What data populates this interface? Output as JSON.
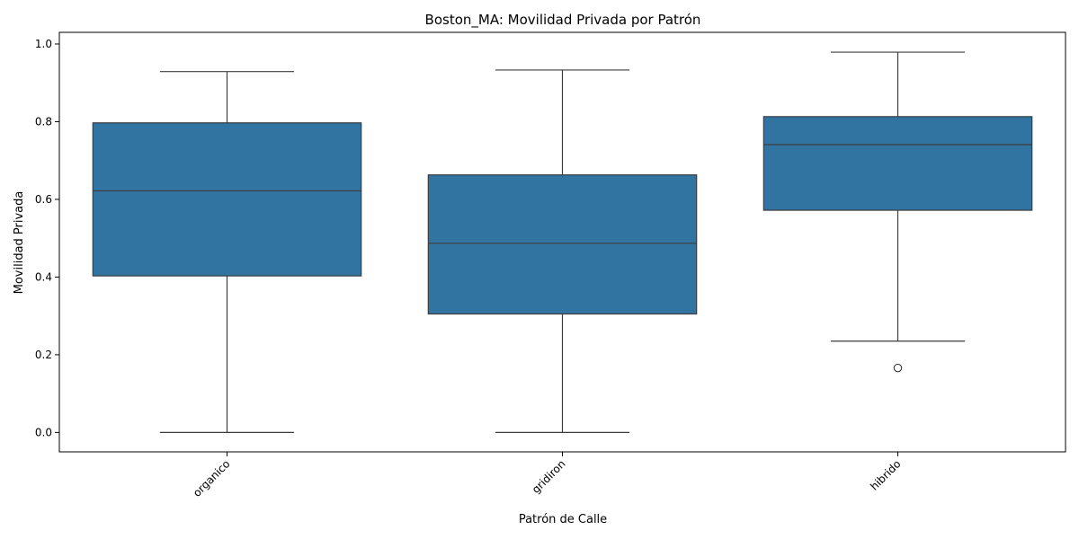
{
  "chart_data": {
    "type": "box",
    "title": "Boston_MA: Movilidad Privada por Patrón",
    "xlabel": "Patrón de Calle",
    "ylabel": "Movilidad Privada",
    "ylim": [
      -0.05,
      1.03
    ],
    "yticks": [
      0.0,
      0.2,
      0.4,
      0.6,
      0.8,
      1.0
    ],
    "ytick_labels": [
      "0.0",
      "0.2",
      "0.4",
      "0.6",
      "0.8",
      "1.0"
    ],
    "categories": [
      "organico",
      "gridiron",
      "hibrido"
    ],
    "boxes": [
      {
        "category": "organico",
        "whisker_low": 0.0,
        "q1": 0.403,
        "median": 0.622,
        "q3": 0.797,
        "whisker_high": 0.929,
        "outliers": []
      },
      {
        "category": "gridiron",
        "whisker_low": 0.0,
        "q1": 0.305,
        "median": 0.487,
        "q3": 0.663,
        "whisker_high": 0.933,
        "outliers": []
      },
      {
        "category": "hibrido",
        "whisker_low": 0.235,
        "q1": 0.572,
        "median": 0.741,
        "q3": 0.813,
        "whisker_high": 0.979,
        "outliers": [
          0.166
        ]
      }
    ],
    "grid": false,
    "colors": {
      "box_fill": "#3274a1",
      "line": "#3d3d3d"
    }
  }
}
